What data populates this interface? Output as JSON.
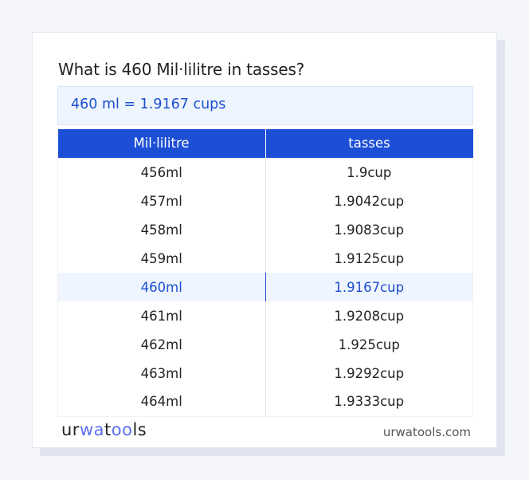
{
  "title": "What is 460 Mil·lilitre in tasses?",
  "result": "460 ml = 1.9167 cups",
  "table": {
    "headers": [
      "Mil·lilitre",
      "tasses"
    ],
    "rows": [
      [
        "456ml",
        "1.9cup"
      ],
      [
        "457ml",
        "1.9042cup"
      ],
      [
        "458ml",
        "1.9083cup"
      ],
      [
        "459ml",
        "1.9125cup"
      ],
      [
        "460ml",
        "1.9167cup"
      ],
      [
        "461ml",
        "1.9208cup"
      ],
      [
        "462ml",
        "1.925cup"
      ],
      [
        "463ml",
        "1.9292cup"
      ],
      [
        "464ml",
        "1.9333cup"
      ]
    ],
    "highlighted_row": 4
  },
  "footer": {
    "logo": "urwatools",
    "site": "urwatools.com"
  },
  "colors": {
    "accent": "#1d4fd6",
    "highlight_bg": "#eef5fe"
  }
}
